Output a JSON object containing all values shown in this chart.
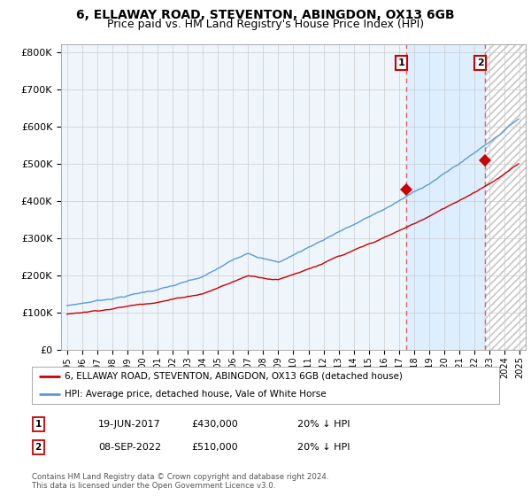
{
  "title": "6, ELLAWAY ROAD, STEVENTON, ABINGDON, OX13 6GB",
  "subtitle": "Price paid vs. HM Land Registry's House Price Index (HPI)",
  "ylim": [
    0,
    820000
  ],
  "yticks": [
    0,
    100000,
    200000,
    300000,
    400000,
    500000,
    600000,
    700000,
    800000
  ],
  "ytick_labels": [
    "£0",
    "£100K",
    "£200K",
    "£300K",
    "£400K",
    "£500K",
    "£600K",
    "£700K",
    "£800K"
  ],
  "hpi_color": "#5b9bd5",
  "price_color": "#cc0000",
  "sale1_date": "19-JUN-2017",
  "sale1_price": 430000,
  "sale1_x": 2017.47,
  "sale2_date": "08-SEP-2022",
  "sale2_price": 510000,
  "sale2_x": 2022.69,
  "annotation1_text": "20% ↓ HPI",
  "annotation2_text": "20% ↓ HPI",
  "legend_label1": "6, ELLAWAY ROAD, STEVENTON, ABINGDON, OX13 6GB (detached house)",
  "legend_label2": "HPI: Average price, detached house, Vale of White Horse",
  "footnote": "Contains HM Land Registry data © Crown copyright and database right 2024.\nThis data is licensed under the Open Government Licence v3.0.",
  "plot_bg": "#eef5fb",
  "shade_between_color": "#ddeeff",
  "vline_color": "#e06060",
  "xstart": 1995,
  "xend": 2025
}
